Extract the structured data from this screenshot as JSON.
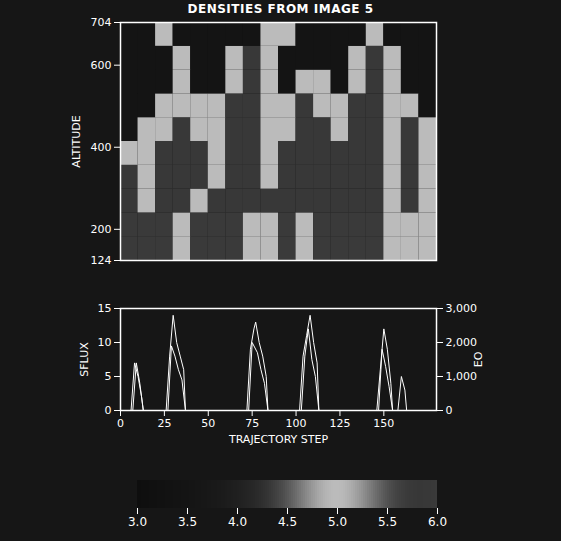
{
  "chart_data": [
    {
      "type": "heatmap",
      "title": "DENSITIES FROM IMAGE 5",
      "ylabel": "ALTITUDE",
      "x_edges": [
        0,
        10,
        20,
        30,
        40,
        50,
        60,
        70,
        80,
        90,
        100,
        110,
        120,
        130,
        140,
        150,
        160,
        170,
        180
      ],
      "y_edges": [
        124,
        182,
        240,
        298,
        356,
        414,
        472,
        530,
        588,
        646,
        704
      ],
      "values": [
        [
          6.0,
          6.0,
          6.0,
          5.0,
          6.0,
          6.0,
          6.0,
          5.0,
          5.0,
          6.0,
          5.0,
          6.0,
          6.0,
          6.0,
          6.0,
          5.0,
          5.0,
          5.0
        ],
        [
          6.0,
          6.0,
          6.0,
          5.0,
          6.0,
          6.0,
          6.0,
          5.0,
          5.0,
          6.0,
          5.0,
          6.0,
          6.0,
          6.0,
          6.0,
          5.0,
          5.0,
          5.0
        ],
        [
          5.8,
          5.0,
          5.8,
          5.8,
          5.0,
          5.8,
          5.8,
          5.8,
          5.8,
          5.8,
          5.8,
          5.8,
          5.8,
          5.8,
          5.8,
          5.0,
          5.8,
          5.0
        ],
        [
          5.8,
          5.0,
          5.8,
          5.8,
          5.8,
          5.0,
          5.8,
          5.8,
          5.0,
          5.8,
          5.8,
          5.8,
          5.8,
          5.8,
          5.8,
          5.0,
          5.8,
          5.0
        ],
        [
          5.0,
          5.0,
          5.8,
          5.8,
          5.8,
          5.0,
          5.8,
          5.8,
          5.0,
          5.8,
          5.8,
          5.8,
          5.8,
          5.8,
          5.8,
          5.0,
          5.8,
          5.0
        ],
        [
          3.5,
          5.0,
          5.0,
          5.8,
          5.0,
          5.0,
          5.8,
          5.8,
          5.0,
          5.0,
          5.8,
          5.8,
          5.0,
          5.8,
          5.8,
          5.0,
          5.8,
          5.0
        ],
        [
          3.5,
          3.5,
          5.0,
          5.0,
          5.0,
          5.0,
          5.8,
          5.8,
          5.0,
          5.0,
          5.8,
          5.0,
          5.0,
          5.8,
          5.8,
          5.0,
          5.0,
          3.5
        ],
        [
          3.5,
          3.5,
          3.5,
          5.0,
          3.5,
          3.5,
          5.0,
          5.8,
          5.0,
          3.5,
          5.0,
          5.0,
          3.5,
          5.0,
          5.8,
          5.0,
          3.5,
          3.5
        ],
        [
          3.5,
          3.5,
          3.5,
          5.0,
          3.5,
          3.5,
          5.0,
          5.8,
          5.0,
          3.5,
          3.5,
          3.5,
          3.5,
          5.0,
          5.8,
          5.0,
          3.5,
          3.5
        ],
        [
          3.5,
          3.5,
          5.0,
          3.5,
          3.5,
          3.5,
          3.5,
          3.5,
          5.0,
          5.0,
          3.5,
          3.5,
          3.5,
          3.5,
          5.0,
          3.5,
          3.5,
          3.5
        ]
      ],
      "xlim": [
        0,
        180
      ],
      "ylim": [
        124,
        704
      ],
      "yticks": [
        124,
        200,
        400,
        600,
        704
      ],
      "tick_labels": "y",
      "colorbar": {
        "range": [
          3,
          6
        ],
        "ticks": [
          {
            "value": 3,
            "label": "3.0"
          },
          3.5,
          {
            "value": 4,
            "label": "4.0"
          },
          4.5,
          {
            "value": 5,
            "label": "5.0"
          },
          5.5,
          {
            "value": 6,
            "label": "6.0"
          }
        ]
      }
    },
    {
      "type": "line",
      "xlabel": "TRAJECTORY STEP",
      "ylabel": "SFLUX",
      "y2label": "EO",
      "xlim": [
        0,
        180
      ],
      "xticks": [
        0,
        25,
        50,
        75,
        100,
        125,
        150
      ],
      "ylim": [
        0,
        15
      ],
      "yticks": [
        0,
        5,
        10,
        15
      ],
      "y2lim": [
        0,
        3000
      ],
      "y2ticks": [
        0,
        1000,
        2000,
        3000
      ],
      "series": [
        {
          "name": "SFLUX",
          "color": "#ffffff",
          "x": [
            0,
            6,
            8,
            10,
            12,
            13,
            26,
            28,
            30,
            32,
            34,
            36,
            37,
            72,
            74,
            76,
            77,
            79,
            81,
            83,
            84,
            102,
            104,
            106,
            108,
            110,
            112,
            113,
            146,
            148,
            150,
            152,
            154,
            155,
            158,
            160,
            162,
            163,
            170
          ],
          "values": [
            0,
            0,
            7,
            5,
            2,
            0,
            0,
            8,
            14,
            10,
            8,
            6,
            0,
            0,
            9,
            12,
            13,
            10,
            8,
            5,
            0,
            0,
            8,
            11,
            14,
            10,
            7,
            0,
            0,
            6,
            12,
            9,
            4,
            0,
            0,
            5,
            3,
            0,
            0
          ]
        },
        {
          "name": "EO",
          "axis": "y2",
          "color": "#ffffff",
          "x": [
            0,
            7,
            9,
            11,
            13,
            27,
            29,
            31,
            33,
            35,
            37,
            73,
            75,
            78,
            80,
            82,
            84,
            103,
            105,
            107,
            109,
            111,
            113,
            147,
            149,
            151,
            153,
            155,
            170
          ],
          "values": [
            0,
            0,
            1400,
            800,
            0,
            0,
            1900,
            1600,
            1200,
            900,
            0,
            0,
            2000,
            1700,
            1200,
            800,
            0,
            0,
            1600,
            2400,
            1500,
            1000,
            0,
            0,
            1800,
            1300,
            700,
            0,
            0
          ]
        }
      ]
    }
  ]
}
